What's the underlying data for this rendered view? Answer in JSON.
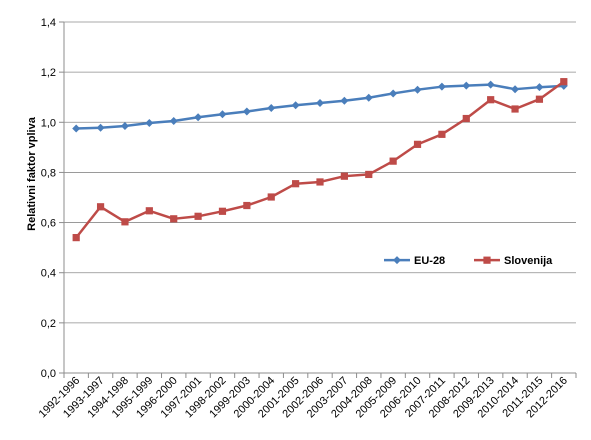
{
  "chart_data": {
    "type": "line",
    "title": "",
    "xlabel": "",
    "ylabel": "Relativni faktor vpliva",
    "ylim": [
      0,
      1.4
    ],
    "yticks": [
      "0,0",
      "0,2",
      "0,4",
      "0,6",
      "0,8",
      "1,0",
      "1,2",
      "1,4"
    ],
    "ytick_values": [
      0,
      0.2,
      0.4,
      0.6,
      0.8,
      1.0,
      1.2,
      1.4
    ],
    "grid": true,
    "legend_position": "center-right",
    "categories": [
      "1992-1996",
      "1993-1997",
      "1994-1998",
      "1995-1999",
      "1996-2000",
      "1997-2001",
      "1998-2002",
      "1999-2003",
      "2000-2004",
      "2001-2005",
      "2002-2006",
      "2003-2007",
      "2004-2008",
      "2005-2009",
      "2006-2010",
      "2007-2011",
      "2008-2012",
      "2009-2013",
      "2010-2014",
      "2011-2015",
      "2012-2016"
    ],
    "series": [
      {
        "name": "EU-28",
        "color": "#4a7ebb",
        "marker": "diamond",
        "values": [
          0.975,
          0.978,
          0.985,
          0.997,
          1.005,
          1.02,
          1.032,
          1.043,
          1.057,
          1.068,
          1.077,
          1.086,
          1.098,
          1.115,
          1.13,
          1.142,
          1.146,
          1.15,
          1.132,
          1.14,
          1.145
        ]
      },
      {
        "name": "Slovenija",
        "color": "#be4b48",
        "marker": "square",
        "values": [
          0.54,
          0.663,
          0.603,
          0.647,
          0.615,
          0.625,
          0.645,
          0.668,
          0.702,
          0.755,
          0.762,
          0.785,
          0.792,
          0.845,
          0.912,
          0.952,
          1.015,
          1.09,
          1.053,
          1.092,
          1.162
        ]
      }
    ]
  }
}
